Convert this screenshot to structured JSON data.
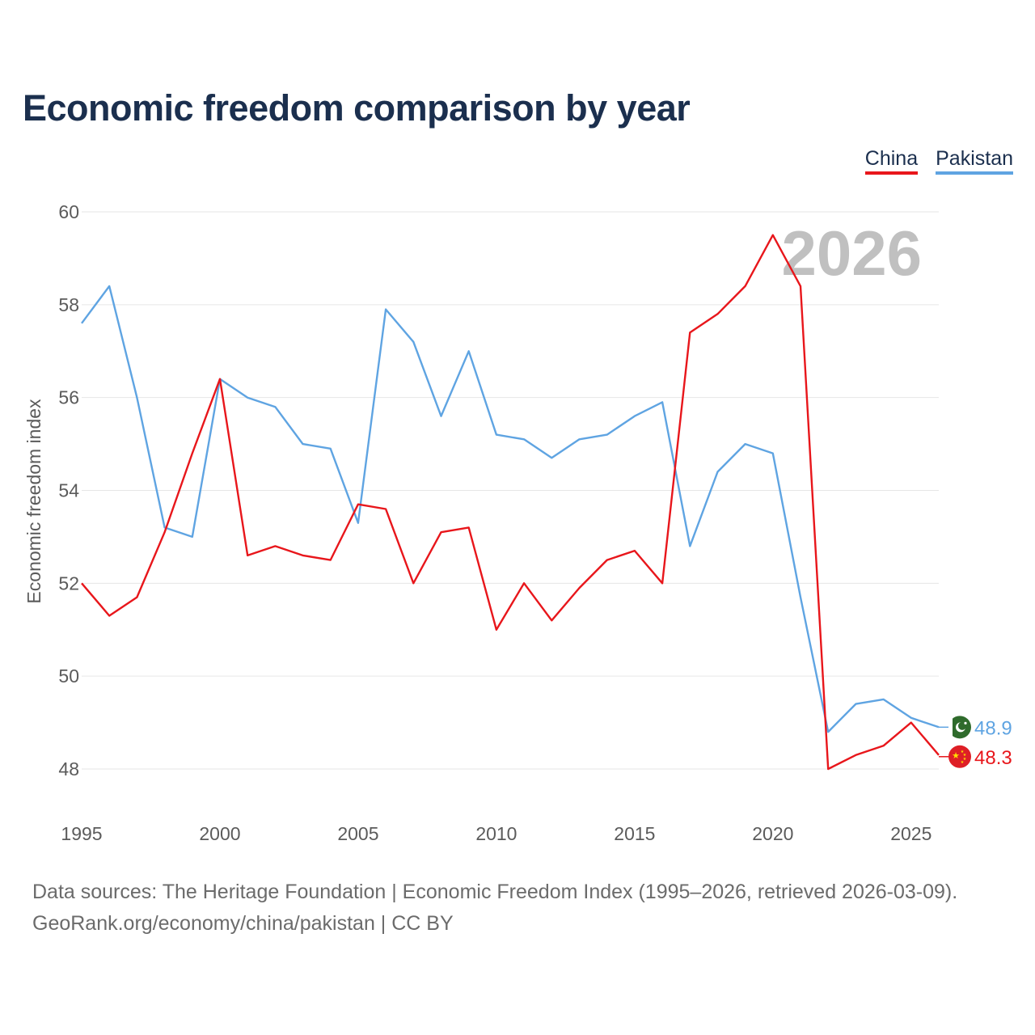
{
  "title": "Economic freedom comparison by year",
  "legend": [
    {
      "label": "China",
      "color": "#e8161b"
    },
    {
      "label": "Pakistan",
      "color": "#5fa4e2"
    }
  ],
  "year_watermark": "2026",
  "footer": {
    "line1": "Data sources: The Heritage Foundation | Economic Freedom Index (1995–2026, retrieved 2026-03-09).",
    "line2": "GeoRank.org/economy/china/pakistan | CC BY"
  },
  "chart_data": {
    "type": "line",
    "title": "Economic freedom comparison by year",
    "xlabel": "",
    "ylabel": "Economic freedom index",
    "xlim": [
      1995,
      2026
    ],
    "ylim": [
      48,
      60
    ],
    "xticks": [
      1995,
      2000,
      2005,
      2010,
      2015,
      2020,
      2025
    ],
    "yticks": [
      48,
      50,
      52,
      54,
      56,
      58,
      60
    ],
    "grid": true,
    "legend_position": "top-right",
    "x": [
      1995,
      1996,
      1997,
      1998,
      1999,
      2000,
      2001,
      2002,
      2003,
      2004,
      2005,
      2006,
      2007,
      2008,
      2009,
      2010,
      2011,
      2012,
      2013,
      2014,
      2015,
      2016,
      2017,
      2018,
      2019,
      2020,
      2021,
      2022,
      2023,
      2024,
      2025,
      2026
    ],
    "series": [
      {
        "name": "China",
        "color": "#e8161b",
        "end_label": "48.3",
        "values": [
          52.0,
          51.3,
          51.7,
          53.1,
          54.8,
          56.4,
          52.6,
          52.8,
          52.6,
          52.5,
          53.7,
          53.6,
          52.0,
          53.1,
          53.2,
          51.0,
          52.0,
          51.2,
          51.9,
          52.5,
          52.7,
          52.0,
          57.4,
          57.8,
          58.4,
          59.5,
          58.4,
          48.0,
          48.3,
          48.5,
          49.0,
          48.3
        ]
      },
      {
        "name": "Pakistan",
        "color": "#5fa4e2",
        "end_label": "48.9",
        "values": [
          57.6,
          58.4,
          56.0,
          53.2,
          53.0,
          56.4,
          56.0,
          55.8,
          55.0,
          54.9,
          53.3,
          57.9,
          57.2,
          55.6,
          57.0,
          55.2,
          55.1,
          54.7,
          55.1,
          55.2,
          55.6,
          55.9,
          52.8,
          54.4,
          55.0,
          54.8,
          51.7,
          48.8,
          49.4,
          49.5,
          49.1,
          48.9
        ]
      }
    ]
  }
}
